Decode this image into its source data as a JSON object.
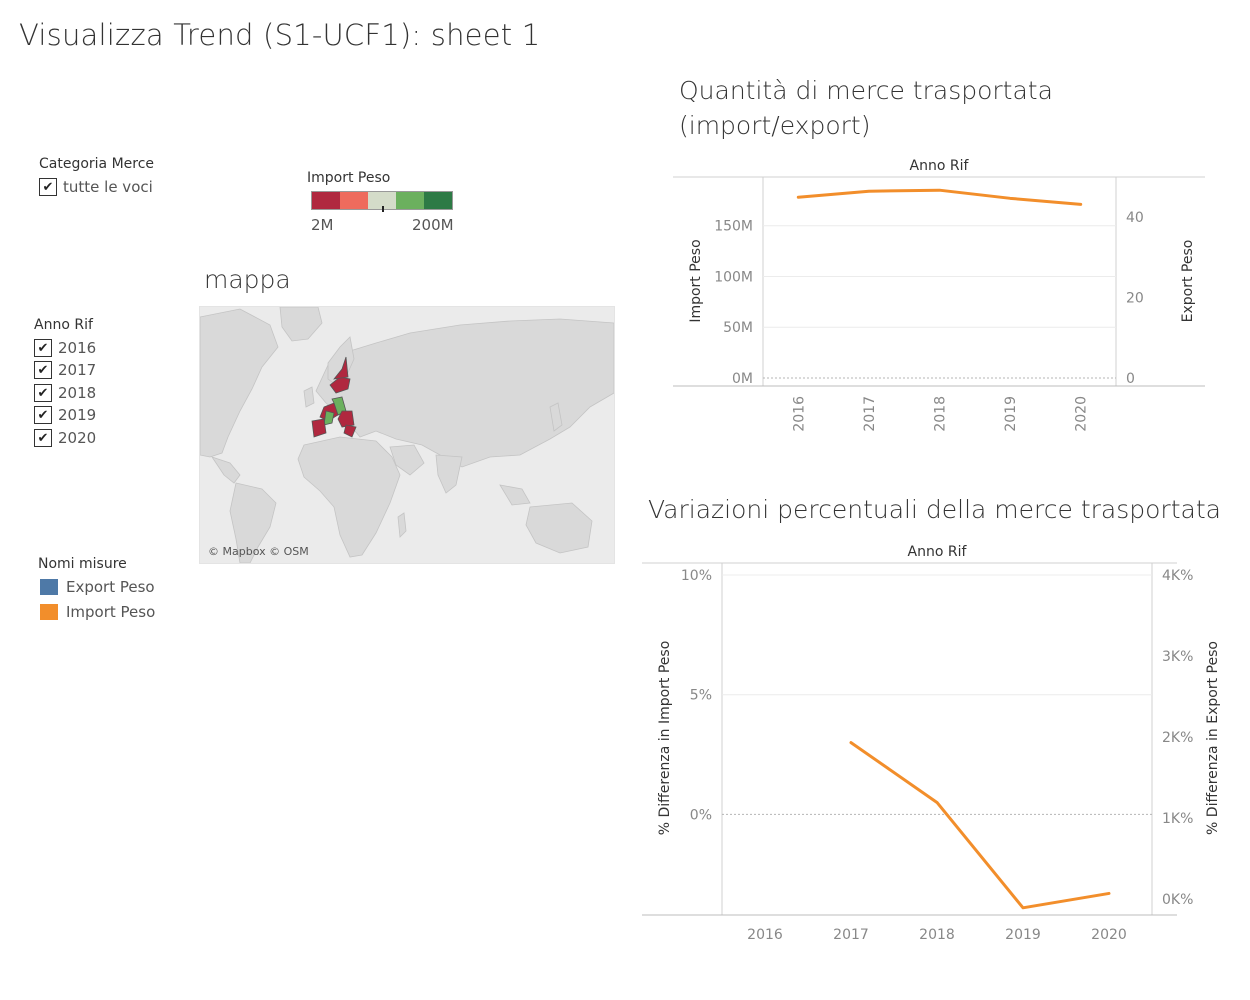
{
  "page": {
    "title": "Visualizza Trend (S1-UCF1): sheet 1"
  },
  "filters": {
    "categoria": {
      "title": "Categoria Merce",
      "items": [
        {
          "label": "tutte le voci",
          "checked": true
        }
      ]
    },
    "anno": {
      "title": "Anno Rif",
      "items": [
        {
          "label": "2016",
          "checked": true
        },
        {
          "label": "2017",
          "checked": true
        },
        {
          "label": "2018",
          "checked": true
        },
        {
          "label": "2019",
          "checked": true
        },
        {
          "label": "2020",
          "checked": true
        }
      ]
    }
  },
  "color_legend": {
    "title": "Import Peso",
    "min_label": "2M",
    "max_label": "200M",
    "colors": [
      "#b0283f",
      "#ee6b5d",
      "#d4dcc9",
      "#6bb05e",
      "#2d7a45"
    ]
  },
  "measure_legend": {
    "title": "Nomi misure",
    "items": [
      {
        "label": "Export Peso",
        "color": "#4e79a7"
      },
      {
        "label": "Import Peso",
        "color": "#f28e2b"
      }
    ]
  },
  "map": {
    "title": "mappa",
    "attribution": "© Mapbox © OSM"
  },
  "chart_data": [
    {
      "type": "line",
      "title": "Quantità di merce trasportata (import/export)",
      "title_lines": [
        "Quantità di merce trasportata",
        "(import/export)"
      ],
      "header": "Anno Rif",
      "categories": [
        "2016",
        "2017",
        "2018",
        "2019",
        "2020"
      ],
      "series": [
        {
          "name": "Import Peso",
          "axis": "left",
          "color": "#f28e2b",
          "values": [
            178,
            184,
            185,
            177,
            171
          ]
        }
      ],
      "ylabel": "Import Peso",
      "ylabel_right": "Export Peso",
      "ylim": [
        0,
        198
      ],
      "yticks": [
        {
          "v": 0,
          "label": "0M"
        },
        {
          "v": 50,
          "label": "50M"
        },
        {
          "v": 100,
          "label": "100M"
        },
        {
          "v": 150,
          "label": "150M"
        }
      ],
      "ylim_right": [
        0,
        50
      ],
      "yticks_right": [
        {
          "v": 0,
          "label": "0"
        },
        {
          "v": 20,
          "label": "20"
        },
        {
          "v": 40,
          "label": "40"
        }
      ],
      "grid": true
    },
    {
      "type": "line",
      "title": "Variazioni percentuali della merce trasportata",
      "header": "Anno Rif",
      "categories": [
        "2016",
        "2017",
        "2018",
        "2019",
        "2020"
      ],
      "series": [
        {
          "name": "Import Peso",
          "axis": "left",
          "color": "#f28e2b",
          "values": [
            null,
            3.0,
            0.5,
            -3.9,
            -3.3
          ]
        }
      ],
      "ylabel": "% Differenza in Import Peso",
      "ylabel_right": "% Differenza in Export Peso",
      "ylim": [
        -4.2,
        10.0
      ],
      "yticks": [
        {
          "v": 0,
          "label": "0%"
        },
        {
          "v": 5,
          "label": "5%"
        },
        {
          "v": 10,
          "label": "10%"
        }
      ],
      "ylim_right": [
        -200,
        4000
      ],
      "yticks_right": [
        {
          "v": 0,
          "label": "0K%"
        },
        {
          "v": 1000,
          "label": "1K%"
        },
        {
          "v": 2000,
          "label": "2K%"
        },
        {
          "v": 3000,
          "label": "3K%"
        },
        {
          "v": 4000,
          "label": "4K%"
        }
      ],
      "grid": true
    }
  ]
}
